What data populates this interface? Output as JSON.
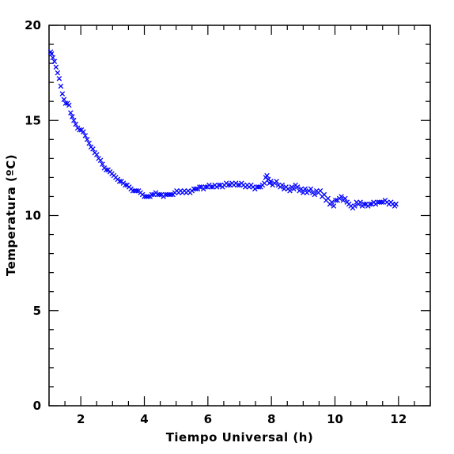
{
  "chart_data": {
    "type": "scatter",
    "xlabel": "Tiempo Universal (h)",
    "ylabel": "Temperatura (ºC)",
    "xlim": [
      1,
      13
    ],
    "ylim": [
      0,
      20
    ],
    "x_ticks": [
      2,
      4,
      6,
      8,
      10,
      12
    ],
    "x_tick_labels": [
      "2",
      "4",
      "6",
      "8",
      "10",
      "12"
    ],
    "y_ticks": [
      0,
      5,
      10,
      15,
      20
    ],
    "y_tick_labels": [
      "0",
      "5",
      "10",
      "15",
      "20"
    ],
    "grid": false,
    "marker": "x",
    "series": [
      {
        "color": "#0000ff",
        "points": [
          [
            1.05,
            18.6
          ],
          [
            1.08,
            18.5
          ],
          [
            1.12,
            18.3
          ],
          [
            1.17,
            18.1
          ],
          [
            1.22,
            17.8
          ],
          [
            1.27,
            17.5
          ],
          [
            1.32,
            17.2
          ],
          [
            1.37,
            16.8
          ],
          [
            1.42,
            16.4
          ],
          [
            1.47,
            16.1
          ],
          [
            1.52,
            15.9
          ],
          [
            1.58,
            15.9
          ],
          [
            1.63,
            15.8
          ],
          [
            1.68,
            15.4
          ],
          [
            1.73,
            15.2
          ],
          [
            1.78,
            15.0
          ],
          [
            1.84,
            14.8
          ],
          [
            1.9,
            14.6
          ],
          [
            1.96,
            14.5
          ],
          [
            2.02,
            14.5
          ],
          [
            2.08,
            14.4
          ],
          [
            2.14,
            14.2
          ],
          [
            2.2,
            14.0
          ],
          [
            2.26,
            13.8
          ],
          [
            2.32,
            13.6
          ],
          [
            2.38,
            13.5
          ],
          [
            2.44,
            13.3
          ],
          [
            2.5,
            13.2
          ],
          [
            2.56,
            13.0
          ],
          [
            2.62,
            12.9
          ],
          [
            2.68,
            12.7
          ],
          [
            2.74,
            12.5
          ],
          [
            2.8,
            12.4
          ],
          [
            2.86,
            12.4
          ],
          [
            2.92,
            12.3
          ],
          [
            2.98,
            12.2
          ],
          [
            3.04,
            12.1
          ],
          [
            3.1,
            12.0
          ],
          [
            3.16,
            11.9
          ],
          [
            3.22,
            11.8
          ],
          [
            3.28,
            11.8
          ],
          [
            3.34,
            11.7
          ],
          [
            3.4,
            11.6
          ],
          [
            3.46,
            11.6
          ],
          [
            3.52,
            11.5
          ],
          [
            3.58,
            11.4
          ],
          [
            3.64,
            11.3
          ],
          [
            3.7,
            11.3
          ],
          [
            3.76,
            11.3
          ],
          [
            3.82,
            11.3
          ],
          [
            3.88,
            11.2
          ],
          [
            3.94,
            11.1
          ],
          [
            4.0,
            11.0
          ],
          [
            4.06,
            11.0
          ],
          [
            4.12,
            11.0
          ],
          [
            4.18,
            11.0
          ],
          [
            4.24,
            11.1
          ],
          [
            4.3,
            11.1
          ],
          [
            4.36,
            11.2
          ],
          [
            4.42,
            11.1
          ],
          [
            4.48,
            11.1
          ],
          [
            4.54,
            11.1
          ],
          [
            4.6,
            11.0
          ],
          [
            4.66,
            11.1
          ],
          [
            4.72,
            11.1
          ],
          [
            4.78,
            11.1
          ],
          [
            4.84,
            11.1
          ],
          [
            4.9,
            11.1
          ],
          [
            4.96,
            11.2
          ],
          [
            5.02,
            11.3
          ],
          [
            5.08,
            11.2
          ],
          [
            5.14,
            11.3
          ],
          [
            5.2,
            11.2
          ],
          [
            5.26,
            11.3
          ],
          [
            5.32,
            11.2
          ],
          [
            5.38,
            11.3
          ],
          [
            5.44,
            11.2
          ],
          [
            5.5,
            11.3
          ],
          [
            5.56,
            11.4
          ],
          [
            5.62,
            11.4
          ],
          [
            5.68,
            11.4
          ],
          [
            5.74,
            11.5
          ],
          [
            5.8,
            11.5
          ],
          [
            5.86,
            11.4
          ],
          [
            5.92,
            11.5
          ],
          [
            5.98,
            11.5
          ],
          [
            6.04,
            11.6
          ],
          [
            6.1,
            11.5
          ],
          [
            6.16,
            11.5
          ],
          [
            6.22,
            11.6
          ],
          [
            6.28,
            11.5
          ],
          [
            6.34,
            11.6
          ],
          [
            6.4,
            11.6
          ],
          [
            6.46,
            11.5
          ],
          [
            6.52,
            11.6
          ],
          [
            6.58,
            11.7
          ],
          [
            6.64,
            11.6
          ],
          [
            6.7,
            11.6
          ],
          [
            6.76,
            11.7
          ],
          [
            6.82,
            11.6
          ],
          [
            6.88,
            11.7
          ],
          [
            6.94,
            11.6
          ],
          [
            7.0,
            11.6
          ],
          [
            7.06,
            11.7
          ],
          [
            7.12,
            11.6
          ],
          [
            7.18,
            11.5
          ],
          [
            7.24,
            11.6
          ],
          [
            7.3,
            11.5
          ],
          [
            7.36,
            11.6
          ],
          [
            7.42,
            11.5
          ],
          [
            7.48,
            11.4
          ],
          [
            7.54,
            11.5
          ],
          [
            7.6,
            11.5
          ],
          [
            7.66,
            11.5
          ],
          [
            7.72,
            11.6
          ],
          [
            7.78,
            11.7
          ],
          [
            7.82,
            12.0
          ],
          [
            7.86,
            12.1
          ],
          [
            7.9,
            11.9
          ],
          [
            7.94,
            11.7
          ],
          [
            7.98,
            11.8
          ],
          [
            8.04,
            11.6
          ],
          [
            8.1,
            11.7
          ],
          [
            8.16,
            11.8
          ],
          [
            8.22,
            11.6
          ],
          [
            8.28,
            11.5
          ],
          [
            8.34,
            11.6
          ],
          [
            8.4,
            11.4
          ],
          [
            8.46,
            11.5
          ],
          [
            8.52,
            11.4
          ],
          [
            8.58,
            11.3
          ],
          [
            8.64,
            11.5
          ],
          [
            8.7,
            11.4
          ],
          [
            8.76,
            11.6
          ],
          [
            8.82,
            11.5
          ],
          [
            8.88,
            11.3
          ],
          [
            8.94,
            11.4
          ],
          [
            9.0,
            11.2
          ],
          [
            9.06,
            11.4
          ],
          [
            9.12,
            11.2
          ],
          [
            9.18,
            11.3
          ],
          [
            9.24,
            11.4
          ],
          [
            9.3,
            11.2
          ],
          [
            9.36,
            11.1
          ],
          [
            9.42,
            11.3
          ],
          [
            9.48,
            11.2
          ],
          [
            9.54,
            11.3
          ],
          [
            9.6,
            11.0
          ],
          [
            9.66,
            11.1
          ],
          [
            9.72,
            10.8
          ],
          [
            9.78,
            10.9
          ],
          [
            9.84,
            10.6
          ],
          [
            9.9,
            10.7
          ],
          [
            9.96,
            10.5
          ],
          [
            10.02,
            10.8
          ],
          [
            10.08,
            10.8
          ],
          [
            10.14,
            10.9
          ],
          [
            10.2,
            11.0
          ],
          [
            10.26,
            10.8
          ],
          [
            10.32,
            10.9
          ],
          [
            10.38,
            10.7
          ],
          [
            10.44,
            10.6
          ],
          [
            10.5,
            10.5
          ],
          [
            10.56,
            10.4
          ],
          [
            10.62,
            10.5
          ],
          [
            10.68,
            10.7
          ],
          [
            10.74,
            10.6
          ],
          [
            10.8,
            10.7
          ],
          [
            10.86,
            10.5
          ],
          [
            10.92,
            10.6
          ],
          [
            10.98,
            10.6
          ],
          [
            11.04,
            10.5
          ],
          [
            11.1,
            10.6
          ],
          [
            11.16,
            10.6
          ],
          [
            11.22,
            10.7
          ],
          [
            11.28,
            10.6
          ],
          [
            11.34,
            10.7
          ],
          [
            11.4,
            10.7
          ],
          [
            11.46,
            10.7
          ],
          [
            11.52,
            10.7
          ],
          [
            11.58,
            10.8
          ],
          [
            11.64,
            10.7
          ],
          [
            11.7,
            10.6
          ],
          [
            11.76,
            10.7
          ],
          [
            11.82,
            10.6
          ],
          [
            11.88,
            10.5
          ],
          [
            11.92,
            10.6
          ]
        ]
      }
    ]
  }
}
